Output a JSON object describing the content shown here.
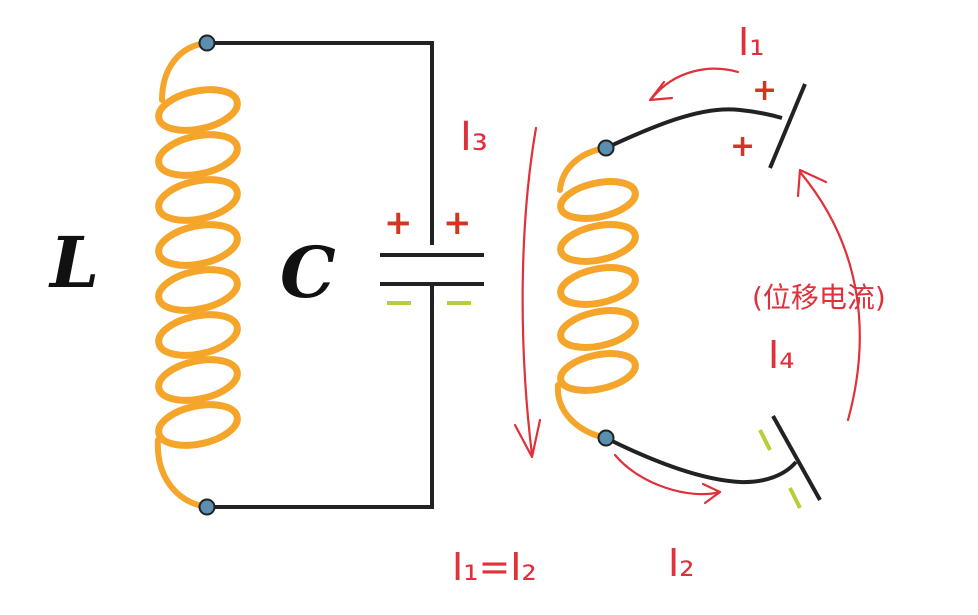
{
  "diagram": {
    "left_circuit": {
      "inductor_label": "L",
      "capacitor_label": "C",
      "plus_signs": [
        "+",
        "+"
      ],
      "minus_signs": [
        "–",
        "–"
      ]
    },
    "right_circuit": {
      "top_plate_signs": [
        "+",
        "+"
      ],
      "bottom_plate_signs": [
        "-",
        "-"
      ]
    },
    "annotations": {
      "i1": "I₁",
      "i2": "I₂",
      "i3": "I₃",
      "i4": "I₄",
      "displacement_current": "(位移电流)",
      "equality": "I₁=I₂"
    },
    "colors": {
      "coil": "#f4a52a",
      "wire": "#222222",
      "terminal": "#5b8fb0",
      "plus": "#d3361f",
      "minus": "#b9cc3a",
      "annotation": "#e0303a"
    }
  }
}
